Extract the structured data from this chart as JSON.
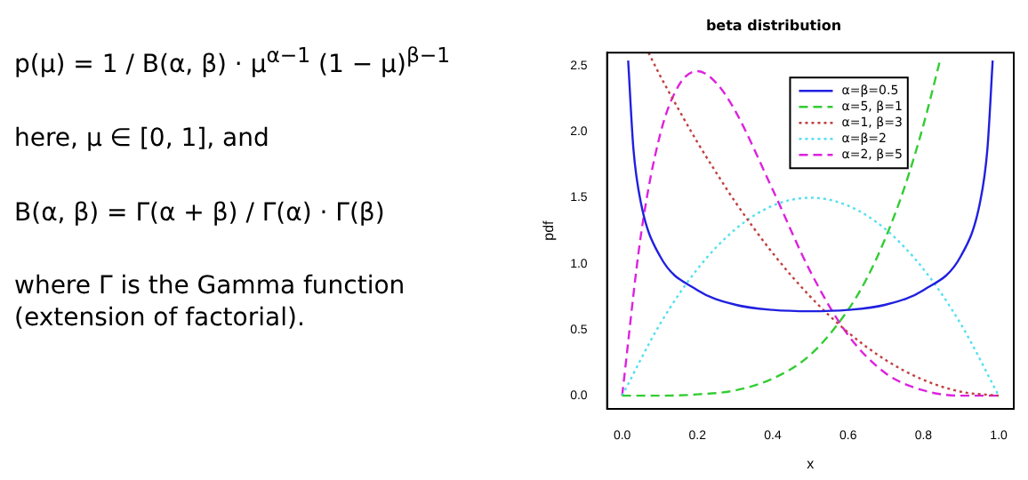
{
  "chart_data": {
    "type": "line",
    "title": "beta distribution",
    "xlabel": "x",
    "ylabel": "pdf",
    "xlim": [
      -0.04,
      1.04
    ],
    "ylim": [
      -0.1,
      2.6
    ],
    "xticks": [
      {
        "value": 0,
        "label": "0.0"
      },
      {
        "value": 0.2,
        "label": "0.2"
      },
      {
        "value": 0.4,
        "label": "0.4"
      },
      {
        "value": 0.6,
        "label": "0.6"
      },
      {
        "value": 0.8,
        "label": "0.8"
      },
      {
        "value": 1,
        "label": "1.0"
      }
    ],
    "yticks": [
      {
        "value": 0,
        "label": "0.0"
      },
      {
        "value": 0.5,
        "label": "0.5"
      },
      {
        "value": 1,
        "label": "1.0"
      },
      {
        "value": 1.5,
        "label": "1.5"
      },
      {
        "value": 2,
        "label": "2.0"
      },
      {
        "value": 2.5,
        "label": "2.5"
      }
    ],
    "grid": false,
    "legend": "top right",
    "marker": "none",
    "series": [
      {
        "name": "α=β=0.5",
        "color": "#2020e0",
        "line_style": "solid",
        "x": [
          0.016,
          0.03,
          0.05,
          0.1,
          0.2,
          0.3,
          0.4,
          0.5,
          0.6,
          0.7,
          0.8,
          0.9,
          0.95,
          0.97,
          0.984
        ],
        "values": [
          2.54,
          1.87,
          1.46,
          1.06,
          0.8,
          0.69,
          0.65,
          0.64,
          0.65,
          0.69,
          0.8,
          1.06,
          1.46,
          1.87,
          2.54
        ]
      },
      {
        "name": "α=5, β=1",
        "color": "#33cc33",
        "line_style": "dashed",
        "x": [
          0,
          0.1,
          0.2,
          0.3,
          0.4,
          0.5,
          0.6,
          0.65,
          0.7,
          0.75,
          0.8,
          0.845
        ],
        "values": [
          0,
          0,
          0.01,
          0.04,
          0.13,
          0.31,
          0.65,
          0.89,
          1.2,
          1.58,
          2.05,
          2.55
        ]
      },
      {
        "name": "α=1, β=3",
        "color": "#c04040",
        "line_style": "dotted",
        "x": [
          0.07,
          0.1,
          0.15,
          0.2,
          0.25,
          0.3,
          0.4,
          0.5,
          0.6,
          0.7,
          0.8,
          0.9,
          1
        ],
        "values": [
          2.6,
          2.43,
          2.17,
          1.92,
          1.69,
          1.47,
          1.08,
          0.75,
          0.48,
          0.27,
          0.12,
          0.03,
          0
        ]
      },
      {
        "name": "α=β=2",
        "color": "#55e0ee",
        "line_style": "dotted",
        "x": [
          0,
          0.1,
          0.2,
          0.3,
          0.4,
          0.5,
          0.6,
          0.7,
          0.8,
          0.9,
          1
        ],
        "values": [
          0,
          0.54,
          0.96,
          1.26,
          1.44,
          1.5,
          1.44,
          1.26,
          0.96,
          0.54,
          0
        ]
      },
      {
        "name": "α=2, β=5",
        "color": "#dd22dd",
        "line_style": "dashed",
        "x": [
          0,
          0.05,
          0.1,
          0.15,
          0.2,
          0.25,
          0.3,
          0.4,
          0.5,
          0.6,
          0.7,
          0.8,
          0.9,
          1
        ],
        "values": [
          0,
          1.22,
          1.97,
          2.35,
          2.46,
          2.37,
          2.16,
          1.56,
          0.94,
          0.46,
          0.17,
          0.04,
          0,
          0
        ]
      }
    ],
    "annotations": [
      "p(μ) = 1 / B(α, β) · μ$^{α−1}$ (1 − μ)$^{β−1}$",
      "here, μ ∈ [0, 1], and",
      "B(α, β) = Γ(α + β) / Γ(α) · Γ(β)",
      "where Γ is the Gamma function (extension of factorial)."
    ]
  }
}
